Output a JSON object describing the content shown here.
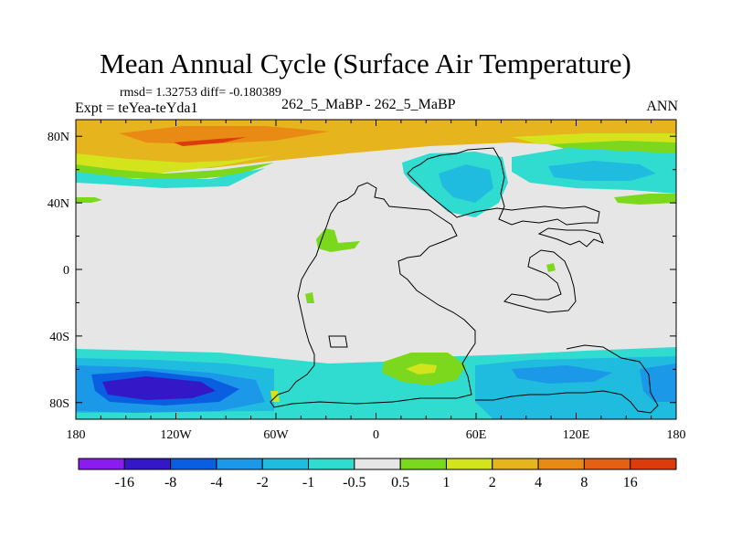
{
  "chart_data": {
    "type": "heatmap",
    "title": "Mean Annual Cycle (Surface Air Temperature)",
    "subtitle": "rmsd= 1.32753 diff= -0.180389",
    "left_label": "Expt = teYea-teYda1",
    "center_label": "262_5_MaBP - 262_5_MaBP",
    "right_label": "ANN",
    "xlim": [
      -180,
      180
    ],
    "ylim": [
      -90,
      90
    ],
    "x_ticks": [
      {
        "value": -180,
        "label": "180"
      },
      {
        "value": -120,
        "label": "120W"
      },
      {
        "value": -60,
        "label": "60W"
      },
      {
        "value": 0,
        "label": "0"
      },
      {
        "value": 60,
        "label": "60E"
      },
      {
        "value": 120,
        "label": "120E"
      },
      {
        "value": 180,
        "label": "180"
      }
    ],
    "y_ticks": [
      {
        "value": 80,
        "label": "80N"
      },
      {
        "value": 40,
        "label": "40N"
      },
      {
        "value": 0,
        "label": "0"
      },
      {
        "value": -40,
        "label": "40S"
      },
      {
        "value": -80,
        "label": "80S"
      }
    ],
    "colorbar": {
      "labels": [
        "-16",
        "-8",
        "-4",
        "-2",
        "-1",
        "-0.5",
        "0.5",
        "1",
        "2",
        "4",
        "8",
        "16"
      ],
      "colors": [
        "#8a1cf0",
        "#3418c8",
        "#0a5ee0",
        "#1c98e8",
        "#20bce0",
        "#30dcd0",
        "#e6e6e6",
        "#7cd81c",
        "#d4e41c",
        "#e6b41c",
        "#e88a14",
        "#e46014",
        "#dc3c0c"
      ]
    },
    "fields": [
      {
        "name": "northern-warm-band",
        "lon": [
          -180,
          180
        ],
        "lat": [
          62,
          90
        ],
        "value": 4
      },
      {
        "name": "northern-strong-warm-core",
        "lon": [
          -120,
          -30
        ],
        "lat": [
          74,
          84
        ],
        "value": 8
      },
      {
        "name": "north-atlantic-cool-patch",
        "lon": [
          20,
          65
        ],
        "lat": [
          40,
          70
        ],
        "value": -1.5
      },
      {
        "name": "north-pacific-cool-patch",
        "lon": [
          95,
          170
        ],
        "lat": [
          44,
          66
        ],
        "value": -2
      },
      {
        "name": "southern-cool-band",
        "lon": [
          -180,
          180
        ],
        "lat": [
          -90,
          -48
        ],
        "value": -1.5
      },
      {
        "name": "southern-strong-cool-core",
        "lon": [
          -170,
          -100
        ],
        "lat": [
          -86,
          -62
        ],
        "value": -8
      },
      {
        "name": "south-atlantic-warm-patch",
        "lon": [
          10,
          55
        ],
        "lat": [
          -68,
          -48
        ],
        "value": 1
      },
      {
        "name": "south-atlantic-warm-core",
        "lon": [
          30,
          42
        ],
        "lat": [
          -62,
          -56
        ],
        "value": 2
      }
    ]
  }
}
